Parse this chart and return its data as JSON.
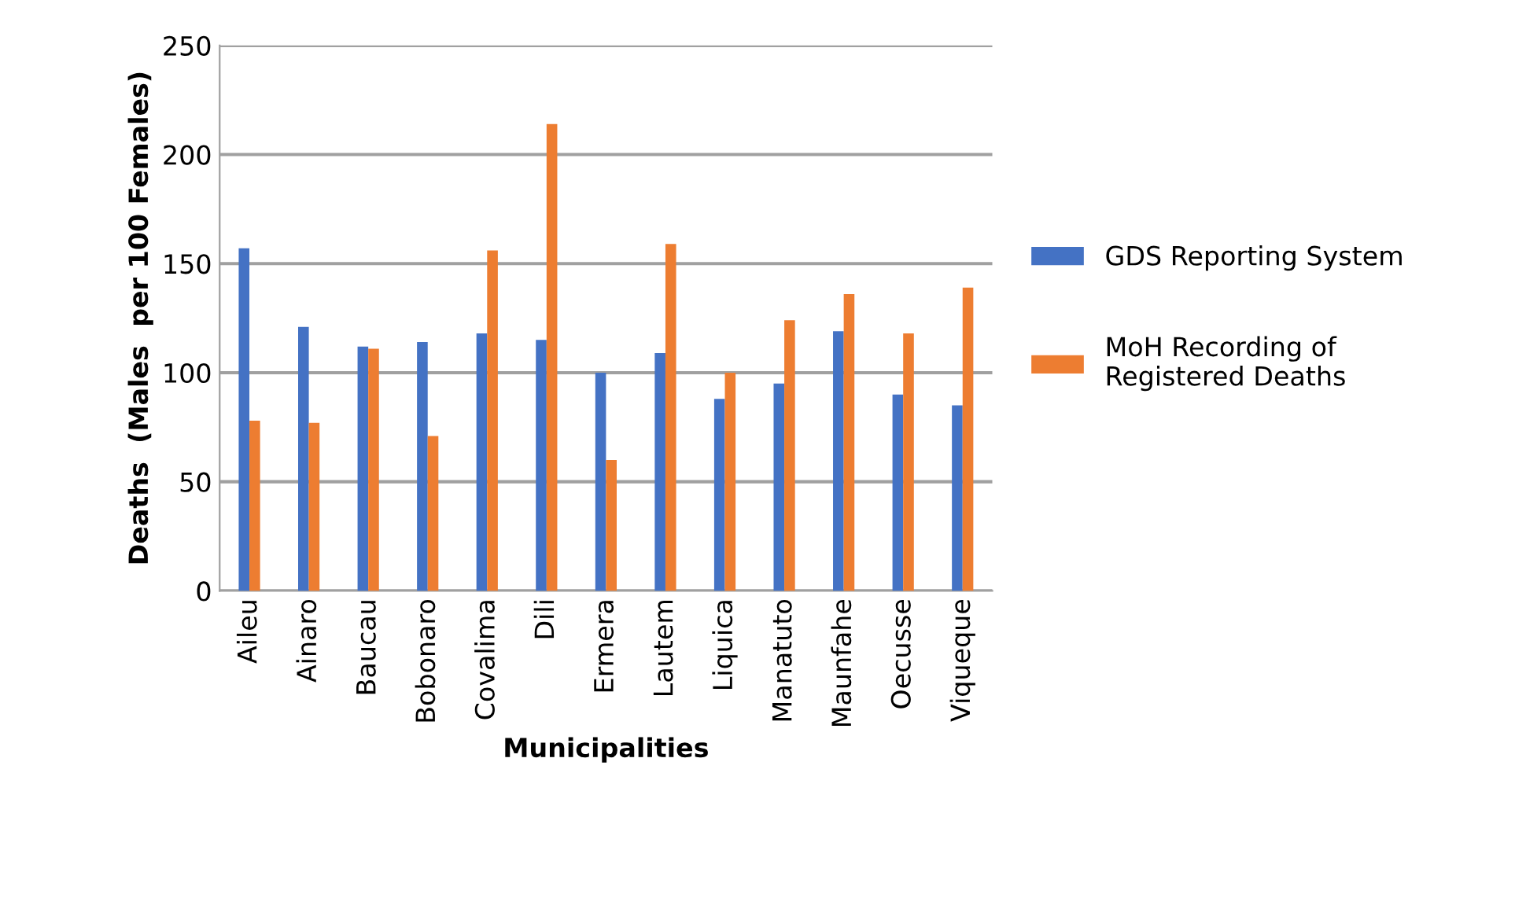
{
  "chart_data": {
    "type": "bar",
    "xlabel": "Municipalities",
    "ylabel": "Deaths  (Males  per 100 Females)",
    "categories": [
      "Aileu",
      "Ainaro",
      "Baucau",
      "Bobonaro",
      "Covalima",
      "Dili",
      "Ermera",
      "Lautem",
      "Liquica",
      "Manatuto",
      "Maunfahe",
      "Oecusse",
      "Viqueque"
    ],
    "series": [
      {
        "name": "GDS Reporting System",
        "color": "#4472c4",
        "values": [
          157,
          121,
          112,
          114,
          118,
          115,
          100,
          109,
          88,
          95,
          119,
          90,
          85
        ]
      },
      {
        "name": "MoH Recording of Registered Deaths",
        "color": "#ed7d31",
        "values": [
          78,
          77,
          111,
          71,
          156,
          214,
          60,
          159,
          100,
          124,
          136,
          118,
          139
        ]
      }
    ],
    "ylim": [
      0,
      250
    ],
    "yticks": [
      0,
      50,
      100,
      150,
      200,
      250
    ],
    "grid": "y",
    "legend": "right"
  }
}
